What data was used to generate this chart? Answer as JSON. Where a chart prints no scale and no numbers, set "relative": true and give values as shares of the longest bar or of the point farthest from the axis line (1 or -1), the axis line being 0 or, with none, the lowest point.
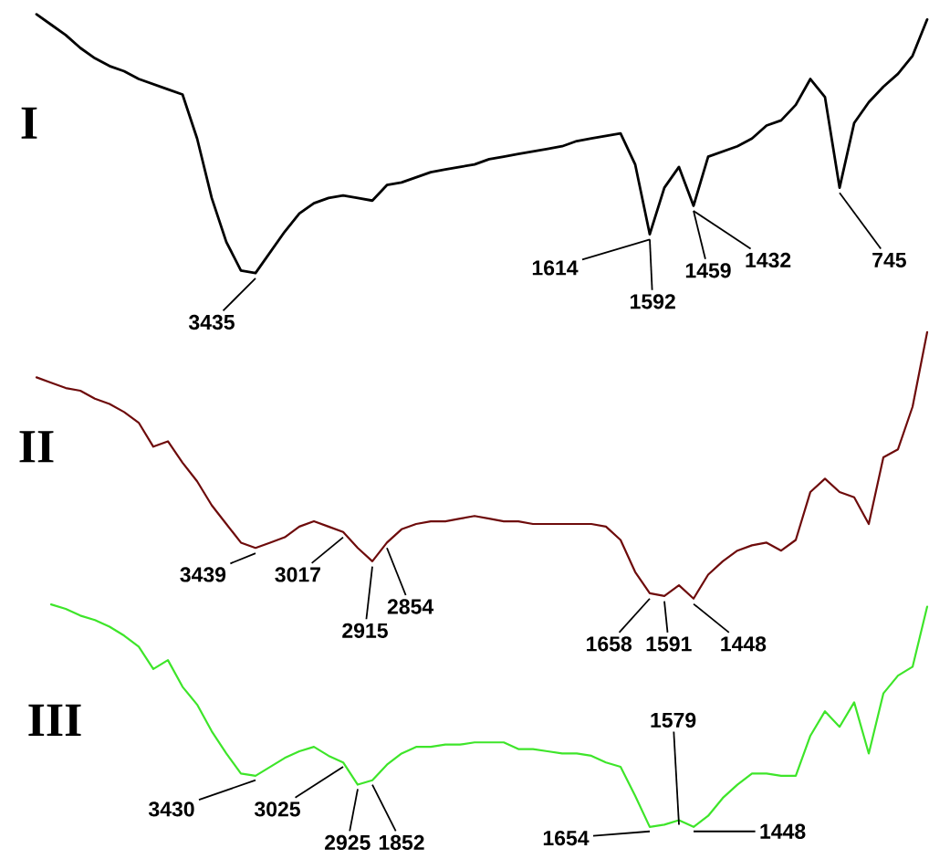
{
  "chart_data": [
    {
      "type": "line",
      "title": "I",
      "relative": true,
      "color": "#000000",
      "categories": [
        null,
        null,
        null,
        null,
        null,
        null,
        null,
        null,
        null,
        null,
        null,
        null,
        null,
        null,
        null,
        null,
        null,
        null,
        null,
        null,
        null,
        null,
        null,
        null,
        null,
        null,
        null,
        null,
        null,
        null,
        null,
        null,
        null,
        null,
        null,
        null,
        null,
        null,
        null,
        null,
        null,
        null,
        null,
        null,
        null,
        null,
        null,
        null,
        null,
        null,
        null,
        null,
        null,
        null,
        null,
        null,
        null,
        null,
        null,
        null,
        null,
        null
      ],
      "values": [
        1.0,
        0.96,
        0.92,
        0.87,
        0.83,
        0.8,
        0.78,
        0.75,
        0.73,
        0.71,
        0.69,
        0.52,
        0.29,
        0.12,
        0.01,
        0.0,
        0.08,
        0.16,
        0.23,
        0.27,
        0.29,
        0.3,
        0.29,
        0.28,
        0.34,
        0.35,
        0.37,
        0.39,
        0.4,
        0.41,
        0.42,
        0.44,
        0.45,
        0.46,
        0.47,
        0.48,
        0.49,
        0.51,
        0.52,
        0.53,
        0.54,
        0.42,
        0.15,
        0.33,
        0.41,
        0.26,
        0.45,
        0.47,
        0.49,
        0.52,
        0.57,
        0.59,
        0.65,
        0.75,
        0.68,
        0.33,
        0.58,
        0.66,
        0.72,
        0.77,
        0.84,
        0.98
      ],
      "annotations": [
        "3435",
        "1614",
        "1592",
        "1459",
        "1432",
        "745"
      ]
    },
    {
      "type": "line",
      "title": "II",
      "relative": true,
      "color": "#6e0b0b",
      "categories": [
        null,
        null,
        null,
        null,
        null,
        null,
        null,
        null,
        null,
        null,
        null,
        null,
        null,
        null,
        null,
        null,
        null,
        null,
        null,
        null,
        null,
        null,
        null,
        null,
        null,
        null,
        null,
        null,
        null,
        null,
        null,
        null,
        null,
        null,
        null,
        null,
        null,
        null,
        null,
        null,
        null,
        null,
        null,
        null,
        null,
        null,
        null,
        null,
        null,
        null,
        null,
        null,
        null,
        null,
        null,
        null,
        null,
        null,
        null,
        null,
        null,
        null
      ],
      "values": [
        0.83,
        0.81,
        0.79,
        0.78,
        0.75,
        0.73,
        0.7,
        0.66,
        0.57,
        0.59,
        0.51,
        0.44,
        0.35,
        0.28,
        0.21,
        0.19,
        0.21,
        0.23,
        0.27,
        0.29,
        0.27,
        0.25,
        0.19,
        0.14,
        0.21,
        0.26,
        0.28,
        0.29,
        0.29,
        0.3,
        0.31,
        0.3,
        0.29,
        0.29,
        0.28,
        0.28,
        0.28,
        0.28,
        0.28,
        0.27,
        0.22,
        0.1,
        0.02,
        0.01,
        0.05,
        0.0,
        0.09,
        0.14,
        0.18,
        0.2,
        0.21,
        0.18,
        0.22,
        0.4,
        0.45,
        0.4,
        0.38,
        0.28,
        0.53,
        0.56,
        0.72,
        1.0
      ],
      "annotations": [
        "3439",
        "3017",
        "2915",
        "2854",
        "1658",
        "1591",
        "1448"
      ]
    },
    {
      "type": "line",
      "title": "III",
      "relative": true,
      "color": "#3ee52a",
      "categories": [
        null,
        null,
        null,
        null,
        null,
        null,
        null,
        null,
        null,
        null,
        null,
        null,
        null,
        null,
        null,
        null,
        null,
        null,
        null,
        null,
        null,
        null,
        null,
        null,
        null,
        null,
        null,
        null,
        null,
        null,
        null,
        null,
        null,
        null,
        null,
        null,
        null,
        null,
        null,
        null,
        null,
        null,
        null,
        null,
        null,
        null,
        null,
        null,
        null,
        null,
        null,
        null,
        null,
        null,
        null,
        null,
        null,
        null,
        null,
        null,
        null,
        null
      ],
      "values": [
        null,
        1.0,
        0.98,
        0.95,
        0.93,
        0.9,
        0.86,
        0.81,
        0.71,
        0.75,
        0.63,
        0.55,
        0.43,
        0.33,
        0.24,
        0.23,
        0.27,
        0.31,
        0.34,
        0.36,
        0.32,
        0.29,
        0.19,
        0.21,
        0.28,
        0.33,
        0.36,
        0.36,
        0.37,
        0.37,
        0.38,
        0.38,
        0.38,
        0.35,
        0.35,
        0.34,
        0.33,
        0.33,
        0.32,
        0.29,
        0.27,
        0.14,
        0.0,
        0.01,
        0.03,
        0.0,
        0.05,
        0.13,
        0.19,
        0.24,
        0.24,
        0.23,
        0.23,
        0.41,
        0.52,
        0.45,
        0.56,
        0.33,
        0.6,
        0.68,
        0.72,
        0.99
      ],
      "annotations": [
        "3430",
        "3025",
        "2925",
        "1852",
        "1579",
        "1654",
        "1448"
      ]
    }
  ]
}
